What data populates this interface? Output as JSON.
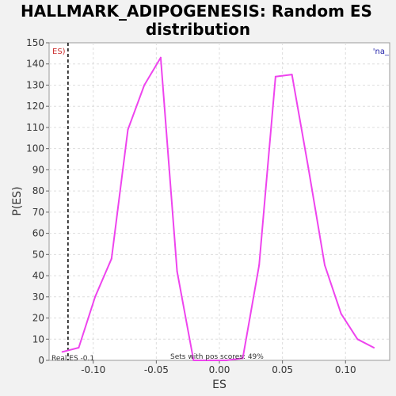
{
  "chart_data": {
    "type": "line",
    "title_line1": "HALLMARK_ADIPOGENESIS: Random ES",
    "title_line2": "distribution",
    "xlabel": "ES",
    "ylabel": "P(ES)",
    "xlim": [
      -0.135,
      0.135
    ],
    "ylim": [
      0,
      150
    ],
    "x_ticks": [
      -0.1,
      -0.05,
      0.0,
      0.05,
      0.1
    ],
    "x_tick_labels": [
      "-0.10",
      "-0.05",
      "0.00",
      "0.05",
      "0.10"
    ],
    "y_ticks": [
      0,
      10,
      20,
      30,
      40,
      50,
      60,
      70,
      80,
      90,
      100,
      110,
      120,
      130,
      140,
      150
    ],
    "y_tick_labels": [
      "0",
      "10",
      "20",
      "30",
      "40",
      "50",
      "60",
      "70",
      "80",
      "90",
      "100",
      "110",
      "120",
      "130",
      "140",
      "150"
    ],
    "grid": true,
    "series": [
      {
        "color": "#ee44ee",
        "x": [
          -0.1245,
          -0.1115,
          -0.0985,
          -0.0855,
          -0.0725,
          -0.0595,
          -0.0465,
          -0.0335,
          -0.0205,
          -0.0075,
          0.0055,
          0.0185,
          0.0315,
          0.0445,
          0.0575,
          0.0705,
          0.0835,
          0.0965,
          0.1095,
          0.1225
        ],
        "y": [
          4,
          6,
          30,
          48,
          109,
          130,
          143,
          42,
          0,
          0,
          0,
          1,
          45,
          134,
          135,
          91,
          45,
          22,
          10,
          6
        ]
      }
    ],
    "real_es": -0.12,
    "real_es_label": "Real ES -0.1",
    "pos_scores_label": "Sets with pos scores: 49%",
    "legend_left_text": "ES)",
    "legend_left_color": "#cc3333",
    "legend_right_text": "'na_",
    "legend_right_color": "#2222aa"
  }
}
